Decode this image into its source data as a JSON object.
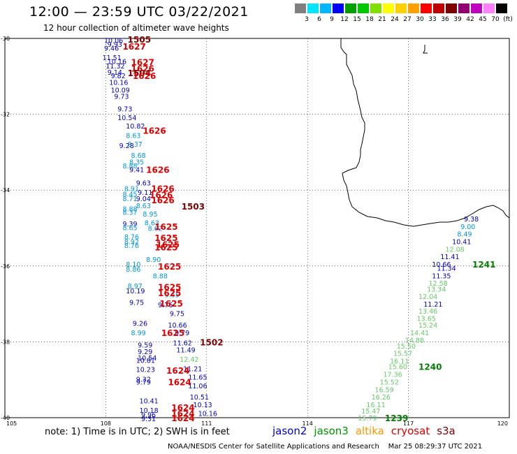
{
  "header": {
    "title": "12:00 — 23:59 UTC 03/22/2021",
    "subtitle": "12 hour collection of altimeter wave heights"
  },
  "colorbar": {
    "colors": [
      "#7f7f7f",
      "#00e5ff",
      "#00b7ff",
      "#0000ff",
      "#00a000",
      "#00c800",
      "#80e000",
      "#ffff00",
      "#ffd000",
      "#ffa000",
      "#ff0000",
      "#c00000",
      "#800000",
      "#900070",
      "#c000c0",
      "#ff80ff",
      "#000000"
    ],
    "labels": [
      "3",
      "6",
      "9",
      "12",
      "15",
      "18",
      "21",
      "24",
      "27",
      "30",
      "33",
      "36",
      "39",
      "42",
      "45",
      "70",
      "(ft)"
    ]
  },
  "map": {
    "lat_ticks": [
      "-30",
      "-32",
      "-34",
      "-36",
      "-38",
      "-40"
    ],
    "lon_ticks": [
      "105",
      "108",
      "111",
      "114",
      "117",
      "120"
    ],
    "observations": [
      {
        "t": "10.06",
        "c": "#0000c8",
        "lat": -30.05,
        "lon": 107.95
      },
      {
        "t": "9.93",
        "c": "#0000c8",
        "lat": -30.15,
        "lon": 108.05
      },
      {
        "t": "9.46",
        "c": "#0000c8",
        "lat": -30.25,
        "lon": 107.95
      },
      {
        "t": "11.51",
        "c": "#0000c8",
        "lat": -30.5,
        "lon": 107.9
      },
      {
        "t": "10.16",
        "c": "#0000c8",
        "lat": -30.6,
        "lon": 108.05
      },
      {
        "t": "11.32",
        "c": "#0000c8",
        "lat": -30.72,
        "lon": 108.0
      },
      {
        "t": "9.14",
        "c": "#0000c8",
        "lat": -30.88,
        "lon": 108.05
      },
      {
        "t": "9.82",
        "c": "#0000c8",
        "lat": -30.98,
        "lon": 108.15
      },
      {
        "t": "10.16",
        "c": "#0000c8",
        "lat": -31.15,
        "lon": 108.1
      },
      {
        "t": "10.09",
        "c": "#0000c8",
        "lat": -31.35,
        "lon": 108.15
      },
      {
        "t": "9.73",
        "c": "#0000c8",
        "lat": -31.52,
        "lon": 108.25
      },
      {
        "t": "9.73",
        "c": "#0000c8",
        "lat": -31.85,
        "lon": 108.35
      },
      {
        "t": "10.54",
        "c": "#0000c8",
        "lat": -32.08,
        "lon": 108.35
      },
      {
        "t": "10.82",
        "c": "#0000c8",
        "lat": -32.3,
        "lon": 108.6
      },
      {
        "t": "8.63",
        "c": "#0096dc",
        "lat": -32.55,
        "lon": 108.6
      },
      {
        "t": "8.37",
        "c": "#0096dc",
        "lat": -32.78,
        "lon": 108.65
      },
      {
        "t": "9.28",
        "c": "#0000c8",
        "lat": -32.82,
        "lon": 108.4
      },
      {
        "t": "8.68",
        "c": "#0096dc",
        "lat": -33.08,
        "lon": 108.75
      },
      {
        "t": "8.35",
        "c": "#0096dc",
        "lat": -33.25,
        "lon": 108.7
      },
      {
        "t": "8.88",
        "c": "#0096dc",
        "lat": -33.35,
        "lon": 108.5
      },
      {
        "t": "9.41",
        "c": "#0000c8",
        "lat": -33.45,
        "lon": 108.7
      },
      {
        "t": "9.63",
        "c": "#0000c8",
        "lat": -33.8,
        "lon": 108.9
      },
      {
        "t": "8.91",
        "c": "#0096dc",
        "lat": -33.95,
        "lon": 108.55
      },
      {
        "t": "9.11",
        "c": "#0000c8",
        "lat": -34.05,
        "lon": 108.95
      },
      {
        "t": "8.45",
        "c": "#0096dc",
        "lat": -34.1,
        "lon": 108.5
      },
      {
        "t": "8.71",
        "c": "#0096dc",
        "lat": -34.22,
        "lon": 108.5
      },
      {
        "t": "9.04",
        "c": "#0000c8",
        "lat": -34.22,
        "lon": 108.9
      },
      {
        "t": "8.63",
        "c": "#0096dc",
        "lat": -34.4,
        "lon": 108.9
      },
      {
        "t": "8.88",
        "c": "#0096dc",
        "lat": -34.48,
        "lon": 108.5
      },
      {
        "t": "8.37",
        "c": "#0096dc",
        "lat": -34.58,
        "lon": 108.5
      },
      {
        "t": "8.95",
        "c": "#0096dc",
        "lat": -34.62,
        "lon": 109.1
      },
      {
        "t": "9.39",
        "c": "#0000c8",
        "lat": -34.88,
        "lon": 108.5
      },
      {
        "t": "8.65",
        "c": "#0096dc",
        "lat": -34.98,
        "lon": 108.5
      },
      {
        "t": "8.63",
        "c": "#0096dc",
        "lat": -34.85,
        "lon": 109.15
      },
      {
        "t": "8.62",
        "c": "#0096dc",
        "lat": -35.0,
        "lon": 109.25
      },
      {
        "t": "8.76",
        "c": "#0096dc",
        "lat": -35.22,
        "lon": 108.55
      },
      {
        "t": "8.92",
        "c": "#0096dc",
        "lat": -35.35,
        "lon": 108.55
      },
      {
        "t": "8.76",
        "c": "#0096dc",
        "lat": -35.45,
        "lon": 108.55
      },
      {
        "t": "8.90",
        "c": "#0096dc",
        "lat": -35.82,
        "lon": 109.2
      },
      {
        "t": "8.10",
        "c": "#0096dc",
        "lat": -35.95,
        "lon": 108.6
      },
      {
        "t": "8.86",
        "c": "#0096dc",
        "lat": -36.08,
        "lon": 108.6
      },
      {
        "t": "8.88",
        "c": "#0096dc",
        "lat": -36.25,
        "lon": 109.4
      },
      {
        "t": "8.97",
        "c": "#0096dc",
        "lat": -36.52,
        "lon": 108.65
      },
      {
        "t": "10.19",
        "c": "#0000c8",
        "lat": -36.65,
        "lon": 108.6
      },
      {
        "t": "9.55",
        "c": "#0096dc",
        "lat": -36.75,
        "lon": 109.75
      },
      {
        "t": "9.75",
        "c": "#0000c8",
        "lat": -36.95,
        "lon": 108.7
      },
      {
        "t": "9.76",
        "c": "#0000c8",
        "lat": -37.02,
        "lon": 109.55
      },
      {
        "t": "9.75",
        "c": "#0000c8",
        "lat": -37.25,
        "lon": 109.9
      },
      {
        "t": "9.26",
        "c": "#0000c8",
        "lat": -37.5,
        "lon": 108.8
      },
      {
        "t": "10.66",
        "c": "#0000c8",
        "lat": -37.55,
        "lon": 109.85
      },
      {
        "t": "8.99",
        "c": "#0096dc",
        "lat": -37.75,
        "lon": 108.75
      },
      {
        "t": "9.79",
        "c": "#0000c8",
        "lat": -37.75,
        "lon": 110.05
      },
      {
        "t": "11.62",
        "c": "#0000c8",
        "lat": -38.02,
        "lon": 110.0
      },
      {
        "t": "9.59",
        "c": "#0000c8",
        "lat": -38.08,
        "lon": 108.95
      },
      {
        "t": "9.29",
        "c": "#0000c8",
        "lat": -38.25,
        "lon": 108.95
      },
      {
        "t": "11.49",
        "c": "#0000c8",
        "lat": -38.2,
        "lon": 110.1
      },
      {
        "t": "10.54",
        "c": "#0000c8",
        "lat": -38.42,
        "lon": 108.95
      },
      {
        "t": "10.81",
        "c": "#0000c8",
        "lat": -38.48,
        "lon": 108.9
      },
      {
        "t": "12.42",
        "c": "#64c864",
        "lat": -38.45,
        "lon": 110.2
      },
      {
        "t": "10.23",
        "c": "#0000c8",
        "lat": -38.72,
        "lon": 108.9
      },
      {
        "t": "11.21",
        "c": "#0000c8",
        "lat": -38.7,
        "lon": 110.3
      },
      {
        "t": "9.32",
        "c": "#0000c8",
        "lat": -38.98,
        "lon": 108.9
      },
      {
        "t": "9.79",
        "c": "#0000c8",
        "lat": -39.05,
        "lon": 108.9
      },
      {
        "t": "11.65",
        "c": "#0000c8",
        "lat": -38.92,
        "lon": 110.45
      },
      {
        "t": "11.06",
        "c": "#0000c8",
        "lat": -39.15,
        "lon": 110.45
      },
      {
        "t": "10.51",
        "c": "#0000c8",
        "lat": -39.45,
        "lon": 110.5
      },
      {
        "t": "10.41",
        "c": "#0000c8",
        "lat": -39.55,
        "lon": 109.0
      },
      {
        "t": "10.13",
        "c": "#0000c8",
        "lat": -39.65,
        "lon": 110.6
      },
      {
        "t": "10.18",
        "c": "#0000c8",
        "lat": -39.8,
        "lon": 109.0
      },
      {
        "t": "10.16",
        "c": "#0000c8",
        "lat": -39.88,
        "lon": 110.75
      },
      {
        "t": "9.96",
        "c": "#0000c8",
        "lat": -39.92,
        "lon": 109.05
      },
      {
        "t": "9.31",
        "c": "#0000c8",
        "lat": -40.02,
        "lon": 109.05
      },
      {
        "t": "9.38",
        "c": "#0000c8",
        "lat": -34.75,
        "lon": 118.65
      },
      {
        "t": "9.00",
        "c": "#0096dc",
        "lat": -34.95,
        "lon": 118.55
      },
      {
        "t": "8.49",
        "c": "#0096dc",
        "lat": -35.15,
        "lon": 118.45
      },
      {
        "t": "10.41",
        "c": "#0000c8",
        "lat": -35.35,
        "lon": 118.3
      },
      {
        "t": "12.08",
        "c": "#64c864",
        "lat": -35.55,
        "lon": 118.1
      },
      {
        "t": "11.41",
        "c": "#0000c8",
        "lat": -35.75,
        "lon": 117.95
      },
      {
        "t": "10.66",
        "c": "#0000c8",
        "lat": -35.95,
        "lon": 117.7
      },
      {
        "t": "11.34",
        "c": "#0000c8",
        "lat": -36.05,
        "lon": 117.85
      },
      {
        "t": "11.35",
        "c": "#0000c8",
        "lat": -36.25,
        "lon": 117.7
      },
      {
        "t": "12.58",
        "c": "#64c864",
        "lat": -36.45,
        "lon": 117.6
      },
      {
        "t": "13.34",
        "c": "#64c864",
        "lat": -36.6,
        "lon": 117.55
      },
      {
        "t": "12.04",
        "c": "#64c864",
        "lat": -36.8,
        "lon": 117.3
      },
      {
        "t": "11.21",
        "c": "#0000c8",
        "lat": -37.0,
        "lon": 117.45
      },
      {
        "t": "13.46",
        "c": "#64c864",
        "lat": -37.18,
        "lon": 117.3
      },
      {
        "t": "13.65",
        "c": "#64c864",
        "lat": -37.38,
        "lon": 117.25
      },
      {
        "t": "15.24",
        "c": "#64c864",
        "lat": -37.55,
        "lon": 117.3
      },
      {
        "t": "14.41",
        "c": "#64c864",
        "lat": -37.75,
        "lon": 117.05
      },
      {
        "t": "14.88",
        "c": "#64c864",
        "lat": -37.95,
        "lon": 116.9
      },
      {
        "t": "15.50",
        "c": "#64c864",
        "lat": -38.1,
        "lon": 116.65
      },
      {
        "t": "15.57",
        "c": "#64c864",
        "lat": -38.3,
        "lon": 116.55
      },
      {
        "t": "16.11",
        "c": "#64c864",
        "lat": -38.5,
        "lon": 116.45
      },
      {
        "t": "15.60",
        "c": "#64c864",
        "lat": -38.65,
        "lon": 116.4
      },
      {
        "t": "17.36",
        "c": "#64c864",
        "lat": -38.85,
        "lon": 116.25
      },
      {
        "t": "15.52",
        "c": "#64c864",
        "lat": -39.05,
        "lon": 116.15
      },
      {
        "t": "16.59",
        "c": "#64c864",
        "lat": -39.25,
        "lon": 116.0
      },
      {
        "t": "16.26",
        "c": "#64c864",
        "lat": -39.45,
        "lon": 115.9
      },
      {
        "t": "16.11",
        "c": "#64c864",
        "lat": -39.65,
        "lon": 115.75
      },
      {
        "t": "15.47",
        "c": "#64c864",
        "lat": -39.82,
        "lon": 115.6
      },
      {
        "t": "15.79",
        "c": "#64c864",
        "lat": -40.0,
        "lon": 115.5
      }
    ],
    "pass_labels": [
      {
        "t": "1505",
        "c": "#800000",
        "lat": -30.02,
        "lon": 108.65
      },
      {
        "t": "1627",
        "c": "#e00000",
        "lat": -30.2,
        "lon": 108.5
      },
      {
        "t": "1627",
        "c": "#e00000",
        "lat": -30.62,
        "lon": 108.75
      },
      {
        "t": "1626",
        "c": "#e00000",
        "lat": -30.78,
        "lon": 108.75
      },
      {
        "t": "1504",
        "c": "#800000",
        "lat": -30.9,
        "lon": 108.65
      },
      {
        "t": "1626",
        "c": "#e00000",
        "lat": -30.98,
        "lon": 108.8
      },
      {
        "t": "1626",
        "c": "#e00000",
        "lat": -32.42,
        "lon": 109.1
      },
      {
        "t": "1626",
        "c": "#e00000",
        "lat": -33.45,
        "lon": 109.2
      },
      {
        "t": "1626",
        "c": "#e00000",
        "lat": -33.95,
        "lon": 109.35
      },
      {
        "t": "1626",
        "c": "#e00000",
        "lat": -34.12,
        "lon": 109.3
      },
      {
        "t": "1626",
        "c": "#e00000",
        "lat": -34.25,
        "lon": 109.35
      },
      {
        "t": "1503",
        "c": "#800000",
        "lat": -34.42,
        "lon": 110.25
      },
      {
        "t": "1625",
        "c": "#e00000",
        "lat": -34.95,
        "lon": 109.45
      },
      {
        "t": "1625",
        "c": "#e00000",
        "lat": -35.25,
        "lon": 109.45
      },
      {
        "t": "1625",
        "c": "#e00000",
        "lat": -35.42,
        "lon": 109.5
      },
      {
        "t": "1625",
        "c": "#e00000",
        "lat": -35.5,
        "lon": 109.45
      },
      {
        "t": "1625",
        "c": "#e00000",
        "lat": -36.0,
        "lon": 109.55
      },
      {
        "t": "1625",
        "c": "#e00000",
        "lat": -36.55,
        "lon": 109.55
      },
      {
        "t": "1625",
        "c": "#e00000",
        "lat": -36.7,
        "lon": 109.55
      },
      {
        "t": "1625",
        "c": "#e00000",
        "lat": -36.98,
        "lon": 109.6
      },
      {
        "t": "1625",
        "c": "#e00000",
        "lat": -37.75,
        "lon": 109.65
      },
      {
        "t": "1502",
        "c": "#800000",
        "lat": -38.0,
        "lon": 110.8
      },
      {
        "t": "1624",
        "c": "#e00000",
        "lat": -38.75,
        "lon": 109.8
      },
      {
        "t": "1624",
        "c": "#e00000",
        "lat": -39.05,
        "lon": 109.85
      },
      {
        "t": "1624",
        "c": "#e00000",
        "lat": -39.72,
        "lon": 109.95
      },
      {
        "t": "1624",
        "c": "#e00000",
        "lat": -39.88,
        "lon": 109.95
      },
      {
        "t": "1624",
        "c": "#e00000",
        "lat": -40.0,
        "lon": 109.95
      },
      {
        "t": "1241",
        "c": "#008000",
        "lat": -35.95,
        "lon": 118.9
      },
      {
        "t": "1240",
        "c": "#008000",
        "lat": -38.65,
        "lon": 117.3
      },
      {
        "t": "1239",
        "c": "#008000",
        "lat": -40.0,
        "lon": 116.3
      }
    ]
  },
  "note": "note: 1) Time is in UTC; 2) SWH is in feet",
  "satellites": [
    {
      "name": "jason2",
      "color": "#0000dc"
    },
    {
      "name": "jason3",
      "color": "#009600"
    },
    {
      "name": "altika",
      "color": "#ff9600"
    },
    {
      "name": "cryosat",
      "color": "#dc0000"
    },
    {
      "name": "s3a",
      "color": "#800000"
    }
  ],
  "footer": "NOAA/NESDIS Center for Satellite Applications and Research    Mar 25 08:29:37 UTC 2021"
}
